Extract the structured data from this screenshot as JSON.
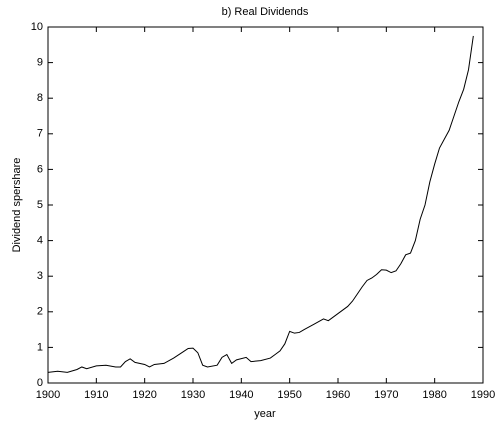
{
  "chart_data": {
    "type": "line",
    "title": "b) Real Dividends",
    "x_label": "year",
    "y_label": "Dividend spershare",
    "x": [
      1900,
      1902,
      1904,
      1906,
      1907,
      1908,
      1910,
      1912,
      1914,
      1915,
      1916,
      1917,
      1918,
      1920,
      1921,
      1922,
      1924,
      1926,
      1928,
      1929,
      1930,
      1931,
      1932,
      1933,
      1935,
      1936,
      1937,
      1938,
      1939,
      1941,
      1942,
      1944,
      1946,
      1947,
      1948,
      1949,
      1950,
      1951,
      1952,
      1953,
      1955,
      1957,
      1958,
      1960,
      1962,
      1963,
      1964,
      1965,
      1966,
      1967,
      1968,
      1969,
      1970,
      1971,
      1972,
      1973,
      1974,
      1975,
      1976,
      1977,
      1978,
      1979,
      1980,
      1981,
      1982,
      1983,
      1984,
      1985,
      1986,
      1987,
      1988
    ],
    "series": [
      {
        "name": "Real Dividends",
        "color": "#000000",
        "values": [
          0.3,
          0.33,
          0.3,
          0.38,
          0.45,
          0.4,
          0.48,
          0.5,
          0.45,
          0.45,
          0.6,
          0.68,
          0.58,
          0.52,
          0.45,
          0.52,
          0.55,
          0.7,
          0.88,
          0.97,
          0.98,
          0.85,
          0.5,
          0.45,
          0.5,
          0.72,
          0.8,
          0.55,
          0.65,
          0.72,
          0.6,
          0.63,
          0.7,
          0.8,
          0.9,
          1.1,
          1.45,
          1.4,
          1.42,
          1.5,
          1.65,
          1.8,
          1.75,
          1.95,
          2.15,
          2.3,
          2.5,
          2.7,
          2.88,
          2.95,
          3.05,
          3.18,
          3.17,
          3.1,
          3.15,
          3.35,
          3.6,
          3.65,
          4.0,
          4.6,
          5.0,
          5.65,
          6.15,
          6.6,
          6.85,
          7.1,
          7.5,
          7.9,
          8.25,
          8.8,
          9.75
        ]
      }
    ],
    "xlim": [
      1900,
      1990
    ],
    "xticks": [
      1900,
      1910,
      1920,
      1930,
      1940,
      1950,
      1960,
      1970,
      1980,
      1990
    ],
    "ylim": [
      0,
      10
    ],
    "yticks": [
      0,
      1,
      2,
      3,
      4,
      5,
      6,
      7,
      8,
      9,
      10
    ]
  }
}
